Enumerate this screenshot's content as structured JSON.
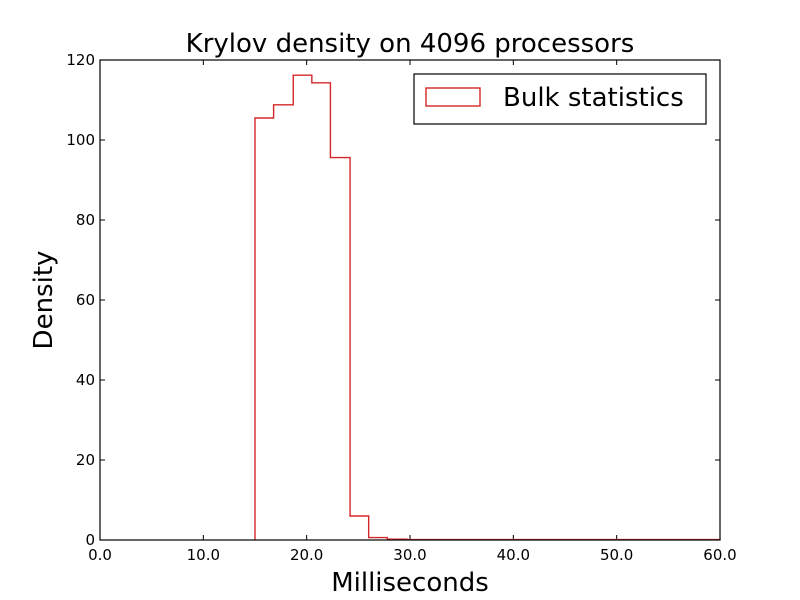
{
  "chart_data": {
    "type": "histogram",
    "title": "Krylov density on 4096 processors",
    "xlabel": "Milliseconds",
    "ylabel": "Density",
    "xlim": [
      0,
      60
    ],
    "ylim": [
      0,
      120
    ],
    "x_ticks": [
      "0.0",
      "10.0",
      "20.0",
      "30.0",
      "40.0",
      "50.0",
      "60.0"
    ],
    "y_ticks": [
      "0",
      "20",
      "40",
      "60",
      "80",
      "100",
      "120"
    ],
    "grid": false,
    "legend_position": "top-right",
    "series": [
      {
        "name": "Bulk statistics",
        "color": "#d62728",
        "style": "step",
        "bin_edges": [
          15.0,
          16.8,
          18.7,
          20.5,
          22.3,
          24.2,
          26.0,
          27.8,
          29.7,
          31.5,
          33.3,
          35.2,
          37.0,
          38.8,
          40.7,
          42.5,
          44.3,
          46.2,
          48.0,
          49.8,
          51.7,
          53.5,
          55.3,
          57.2,
          59.0,
          60.0
        ],
        "values": [
          105.5,
          108.8,
          116.2,
          114.3,
          95.6,
          6.0,
          0.6,
          0.2,
          0.1,
          0.1,
          0.1,
          0.1,
          0.1,
          0.1,
          0.1,
          0.1,
          0.1,
          0.1,
          0.1,
          0.1,
          0.1,
          0.1,
          0.1,
          0.1,
          0.1
        ]
      }
    ]
  }
}
